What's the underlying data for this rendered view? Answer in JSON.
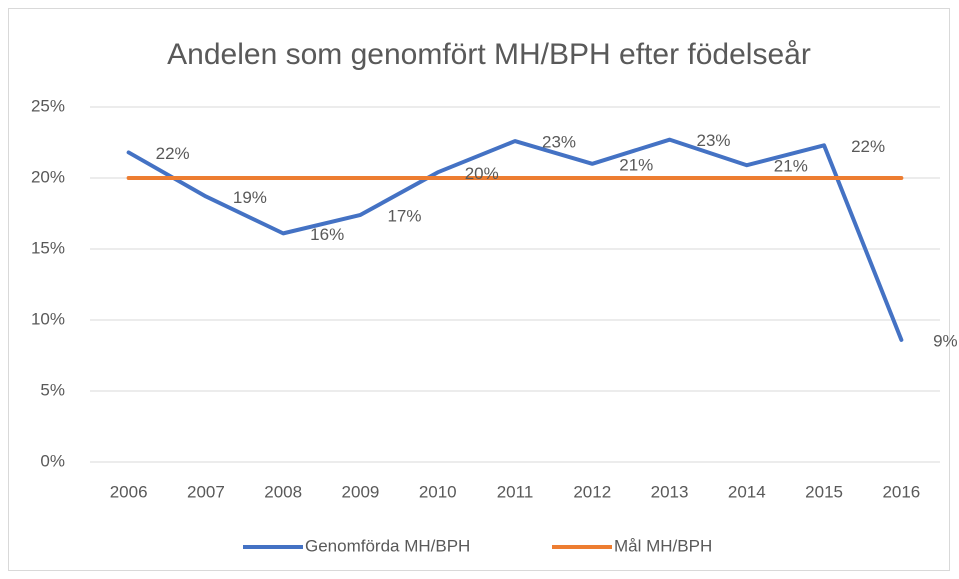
{
  "chart_data": {
    "type": "line",
    "title": "Andelen som genomfört MH/BPH efter födelseår",
    "categories": [
      "2006",
      "2007",
      "2008",
      "2009",
      "2010",
      "2011",
      "2012",
      "2013",
      "2014",
      "2015",
      "2016"
    ],
    "series": [
      {
        "name": "Genomförda MH/BPH",
        "color": "#4472c4",
        "values": [
          21.8,
          18.7,
          16.1,
          17.4,
          20.4,
          22.6,
          21.0,
          22.7,
          20.9,
          22.3,
          8.6
        ],
        "value_labels": [
          "22%",
          "19%",
          "16%",
          "17%",
          "20%",
          "23%",
          "21%",
          "23%",
          "21%",
          "22%",
          "9%"
        ]
      },
      {
        "name": "Mål MH/BPH",
        "color": "#ed7d31",
        "values": [
          20,
          20,
          20,
          20,
          20,
          20,
          20,
          20,
          20,
          20,
          20
        ]
      }
    ],
    "ylim": [
      0,
      25
    ],
    "yticks": [
      {
        "value": 0,
        "label": "0%"
      },
      {
        "value": 5,
        "label": "5%"
      },
      {
        "value": 10,
        "label": "10%"
      },
      {
        "value": 15,
        "label": "15%"
      },
      {
        "value": 20,
        "label": "20%"
      },
      {
        "value": 25,
        "label": "25%"
      }
    ],
    "grid": true,
    "legend": "bottom"
  }
}
